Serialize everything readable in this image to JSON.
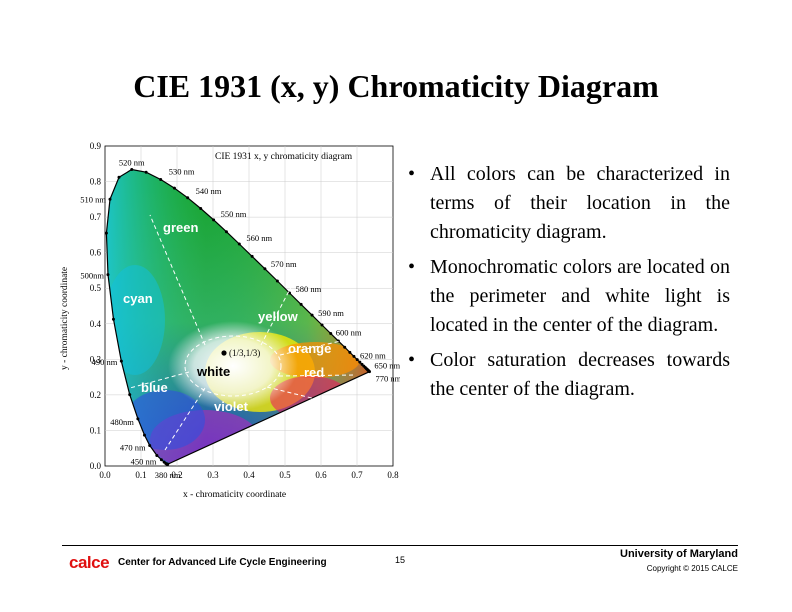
{
  "title": "CIE 1931 (x, y) Chromaticity Diagram",
  "figure": {
    "title": "CIE 1931 x, y chromaticity diagram",
    "xlabel": "x - chromaticity coordinate",
    "ylabel": "y - chromaticity coordinate",
    "x_ticks": [
      "0.0",
      "0.1",
      "0.2",
      "0.3",
      "0.4",
      "0.5",
      "0.6",
      "0.7",
      "0.8"
    ],
    "y_ticks": [
      "0.0",
      "0.1",
      "0.2",
      "0.3",
      "0.4",
      "0.5",
      "0.6",
      "0.7",
      "0.8",
      "0.9"
    ],
    "wavelength_labels": [
      {
        "text": "520 nm",
        "x": 0.0743,
        "y": 0.8338
      },
      {
        "text": "530 nm",
        "x": 0.1547,
        "y": 0.8059
      },
      {
        "text": "540 nm",
        "x": 0.2296,
        "y": 0.7543
      },
      {
        "text": "550 nm",
        "x": 0.3016,
        "y": 0.6923
      },
      {
        "text": "560 nm",
        "x": 0.3731,
        "y": 0.6245
      },
      {
        "text": "570 nm",
        "x": 0.4441,
        "y": 0.5547
      },
      {
        "text": "580 nm",
        "x": 0.5125,
        "y": 0.4866
      },
      {
        "text": "590 nm",
        "x": 0.5752,
        "y": 0.4242
      },
      {
        "text": "600 nm",
        "x": 0.627,
        "y": 0.3725
      },
      {
        "text": "620 nm",
        "x": 0.6915,
        "y": 0.3083
      },
      {
        "text": "650 nm",
        "x": 0.726,
        "y": 0.274
      },
      {
        "text": "770 nm",
        "x": 0.7347,
        "y": 0.2653
      },
      {
        "text": "510 nm",
        "x": 0.0139,
        "y": 0.7502
      },
      {
        "text": "500nm",
        "x": 0.0082,
        "y": 0.5384
      },
      {
        "text": "490 nm",
        "x": 0.0454,
        "y": 0.295
      },
      {
        "text": "480nm",
        "x": 0.0913,
        "y": 0.1327
      },
      {
        "text": "470 nm",
        "x": 0.1241,
        "y": 0.0578
      },
      {
        "text": "450 nm",
        "x": 0.1566,
        "y": 0.0177
      },
      {
        "text": "380 nm",
        "x": 0.1741,
        "y": 0.005
      }
    ],
    "regions": [
      "green",
      "cyan",
      "yellow",
      "orange",
      "white",
      "red",
      "blue",
      "violet"
    ],
    "white_point": {
      "label": "(1/3,1/3)",
      "x": 0.3333,
      "y": 0.3333
    }
  },
  "bullets": [
    "All colors can be characterized in terms of their location in the chromaticity diagram.",
    "Monochromatic colors are located on the perimeter and white light is located in the center of the diagram.",
    "Color saturation decreases towards the center of the diagram."
  ],
  "footer": {
    "logo": "calce",
    "center_name": "Center for Advanced Life Cycle Engineering",
    "page": "15",
    "university": "University of Maryland",
    "copyright": "Copyright © 2015 CALCE"
  }
}
